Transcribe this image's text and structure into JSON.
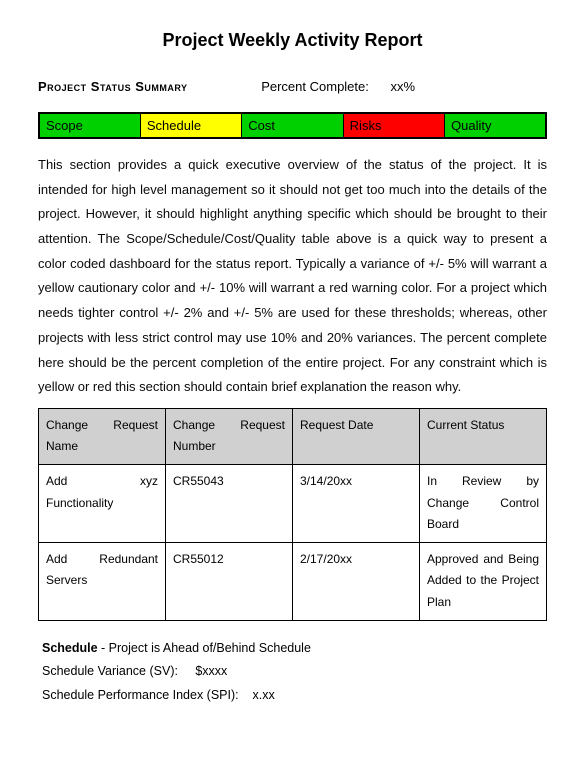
{
  "title": "Project Weekly Activity Report",
  "summary_label": "Project Status Summary",
  "percent_complete_label": "Percent Complete:",
  "percent_complete_value": "xx%",
  "dashboard": {
    "cells": [
      {
        "label": "Scope",
        "bg": "#00d000",
        "fg": "#000000"
      },
      {
        "label": "Schedule",
        "bg": "#ffff00",
        "fg": "#000000"
      },
      {
        "label": "Cost",
        "bg": "#00d000",
        "fg": "#000000"
      },
      {
        "label": "Risks",
        "bg": "#ff0000",
        "fg": "#000000"
      },
      {
        "label": "Quality",
        "bg": "#00d000",
        "fg": "#000000"
      }
    ]
  },
  "body_paragraph": "This section provides a quick executive overview of the status of the project.  It is intended for high level management so it should not get too much into the details of the project.  However, it should highlight anything specific which should be brought to their attention.  The Scope/Schedule/Cost/Quality table above is a quick way to present a color coded dashboard for the status report.  Typically a variance of +/- 5% will warrant a yellow cautionary color and +/- 10% will warrant a red warning color.  For a project which needs tighter control +/- 2% and +/- 5% are used for these thresholds; whereas, other projects with less strict control may use 10% and 20% variances.  The percent complete here should be the percent completion of the entire project.  For any constraint which is yellow or red this section should contain brief explanation the reason why.",
  "change_requests": {
    "columns": [
      "Change Request Name",
      "Change Request Number",
      "Request Date",
      "Current Status"
    ],
    "rows": [
      [
        "Add xyz Functionality",
        "CR55043",
        "3/14/20xx",
        "In Review by Change Control Board"
      ],
      [
        "Add Redundant Servers",
        "CR55012",
        "2/17/20xx",
        "Approved and Being Added to the Project Plan"
      ]
    ]
  },
  "schedule": {
    "heading_label": "Schedule",
    "heading_text": " - Project is Ahead of/Behind Schedule",
    "sv_label": "Schedule Variance (SV):",
    "sv_value": "$xxxx",
    "spi_label": "Schedule Performance Index (SPI):",
    "spi_value": "x.xx"
  }
}
